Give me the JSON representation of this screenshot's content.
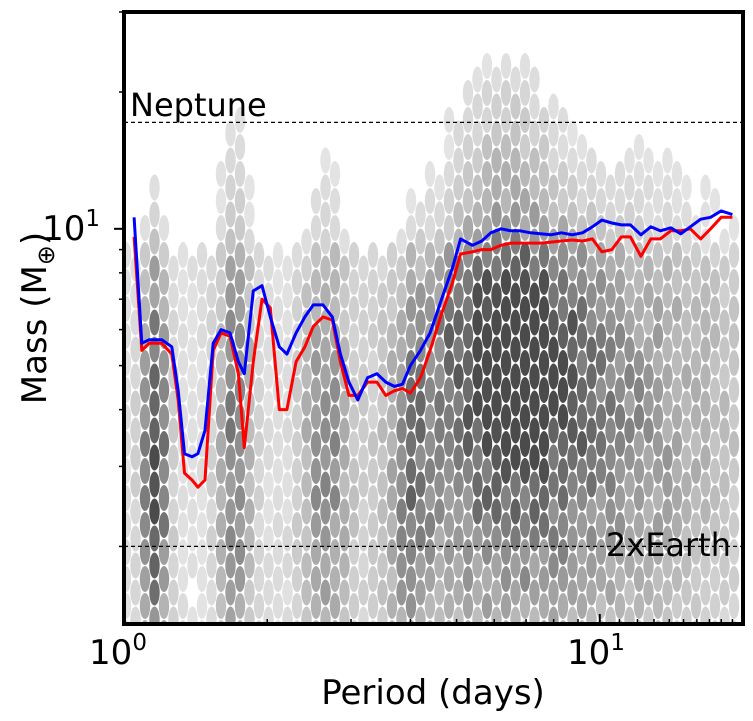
{
  "chart_data": {
    "type": "line",
    "title": "",
    "xlabel": "Period (days)",
    "ylabel_main": "Mass (M",
    "ylabel_sub": "⊕",
    "ylabel_close": ")",
    "xscale": "log",
    "yscale": "log",
    "xlim": [
      1.0,
      20.0
    ],
    "ylim": [
      1.35,
      30.0
    ],
    "x_ticks": [
      {
        "base": "10",
        "exp": "0",
        "value": 1
      },
      {
        "base": "10",
        "exp": "1",
        "value": 10
      }
    ],
    "y_ticks": [
      {
        "base": "10",
        "exp": "1",
        "value": 10
      }
    ],
    "reference_lines": [
      {
        "label": "Neptune",
        "value": 17.15,
        "label_position": "top-left"
      },
      {
        "label": "2xEarth",
        "value": 2.0,
        "label_position": "bottom-right"
      }
    ],
    "background": "grayscale hexbin density of period vs mass",
    "series": [
      {
        "name": "blue",
        "color": "#0000ff",
        "x": [
          1.05,
          1.09,
          1.13,
          1.2,
          1.26,
          1.3,
          1.34,
          1.39,
          1.43,
          1.48,
          1.54,
          1.6,
          1.67,
          1.74,
          1.79,
          1.87,
          1.95,
          2.03,
          2.12,
          2.2,
          2.3,
          2.4,
          2.5,
          2.62,
          2.74,
          2.85,
          2.97,
          3.1,
          3.25,
          3.4,
          3.55,
          3.7,
          3.85,
          4.0,
          4.2,
          4.4,
          4.65,
          4.9,
          5.1,
          5.4,
          5.65,
          5.9,
          6.2,
          6.5,
          6.8,
          7.15,
          7.5,
          7.9,
          8.3,
          8.75,
          9.2,
          9.65,
          10.1,
          10.6,
          11.1,
          11.6,
          12.2,
          12.8,
          13.4,
          14.1,
          14.8,
          15.5,
          16.3,
          17.1,
          18.0,
          19.0
        ],
        "y": [
          10.6,
          5.6,
          5.7,
          5.7,
          5.5,
          4.4,
          3.2,
          3.15,
          3.2,
          3.6,
          5.6,
          6.0,
          5.9,
          5.1,
          4.8,
          7.3,
          7.5,
          6.4,
          5.5,
          5.3,
          5.9,
          6.4,
          6.8,
          6.8,
          6.4,
          5.3,
          4.6,
          4.2,
          4.7,
          4.8,
          4.6,
          4.5,
          4.55,
          5.0,
          5.4,
          5.9,
          7.0,
          8.2,
          9.5,
          9.2,
          9.4,
          9.8,
          10.0,
          9.9,
          9.9,
          9.8,
          9.75,
          9.7,
          9.8,
          9.7,
          9.8,
          10.1,
          10.45,
          10.3,
          10.2,
          10.2,
          9.7,
          10.1,
          9.9,
          10.05,
          9.75,
          10.1,
          10.5,
          10.6,
          10.95,
          10.75
        ]
      },
      {
        "name": "red",
        "color": "#ff0000",
        "x": [
          1.05,
          1.09,
          1.13,
          1.2,
          1.26,
          1.3,
          1.34,
          1.39,
          1.43,
          1.48,
          1.54,
          1.6,
          1.67,
          1.74,
          1.79,
          1.87,
          1.95,
          2.03,
          2.12,
          2.2,
          2.3,
          2.4,
          2.5,
          2.62,
          2.74,
          2.85,
          2.97,
          3.1,
          3.25,
          3.4,
          3.55,
          3.7,
          3.85,
          4.0,
          4.2,
          4.4,
          4.65,
          4.9,
          5.1,
          5.4,
          5.65,
          5.9,
          6.2,
          6.5,
          6.8,
          7.15,
          7.5,
          7.9,
          8.3,
          8.75,
          9.2,
          9.65,
          10.1,
          10.6,
          11.1,
          11.6,
          12.2,
          12.8,
          13.4,
          14.1,
          14.8,
          15.5,
          16.3,
          17.1,
          18.0,
          19.0
        ],
        "y": [
          9.6,
          5.4,
          5.6,
          5.6,
          5.3,
          4.2,
          2.9,
          2.8,
          2.7,
          2.8,
          5.4,
          5.9,
          5.8,
          4.8,
          3.3,
          5.1,
          7.0,
          6.7,
          4.0,
          4.0,
          5.1,
          5.5,
          6.1,
          6.4,
          6.3,
          5.1,
          4.3,
          4.3,
          4.6,
          4.6,
          4.3,
          4.4,
          4.45,
          4.35,
          4.7,
          5.4,
          6.5,
          7.6,
          8.8,
          8.9,
          9.0,
          9.0,
          9.2,
          9.3,
          9.3,
          9.3,
          9.3,
          9.35,
          9.4,
          9.45,
          9.4,
          9.5,
          8.9,
          9.0,
          9.6,
          9.6,
          8.7,
          9.5,
          9.5,
          9.9,
          9.9,
          10.0,
          9.5,
          10.0,
          10.6,
          10.6
        ]
      }
    ]
  }
}
